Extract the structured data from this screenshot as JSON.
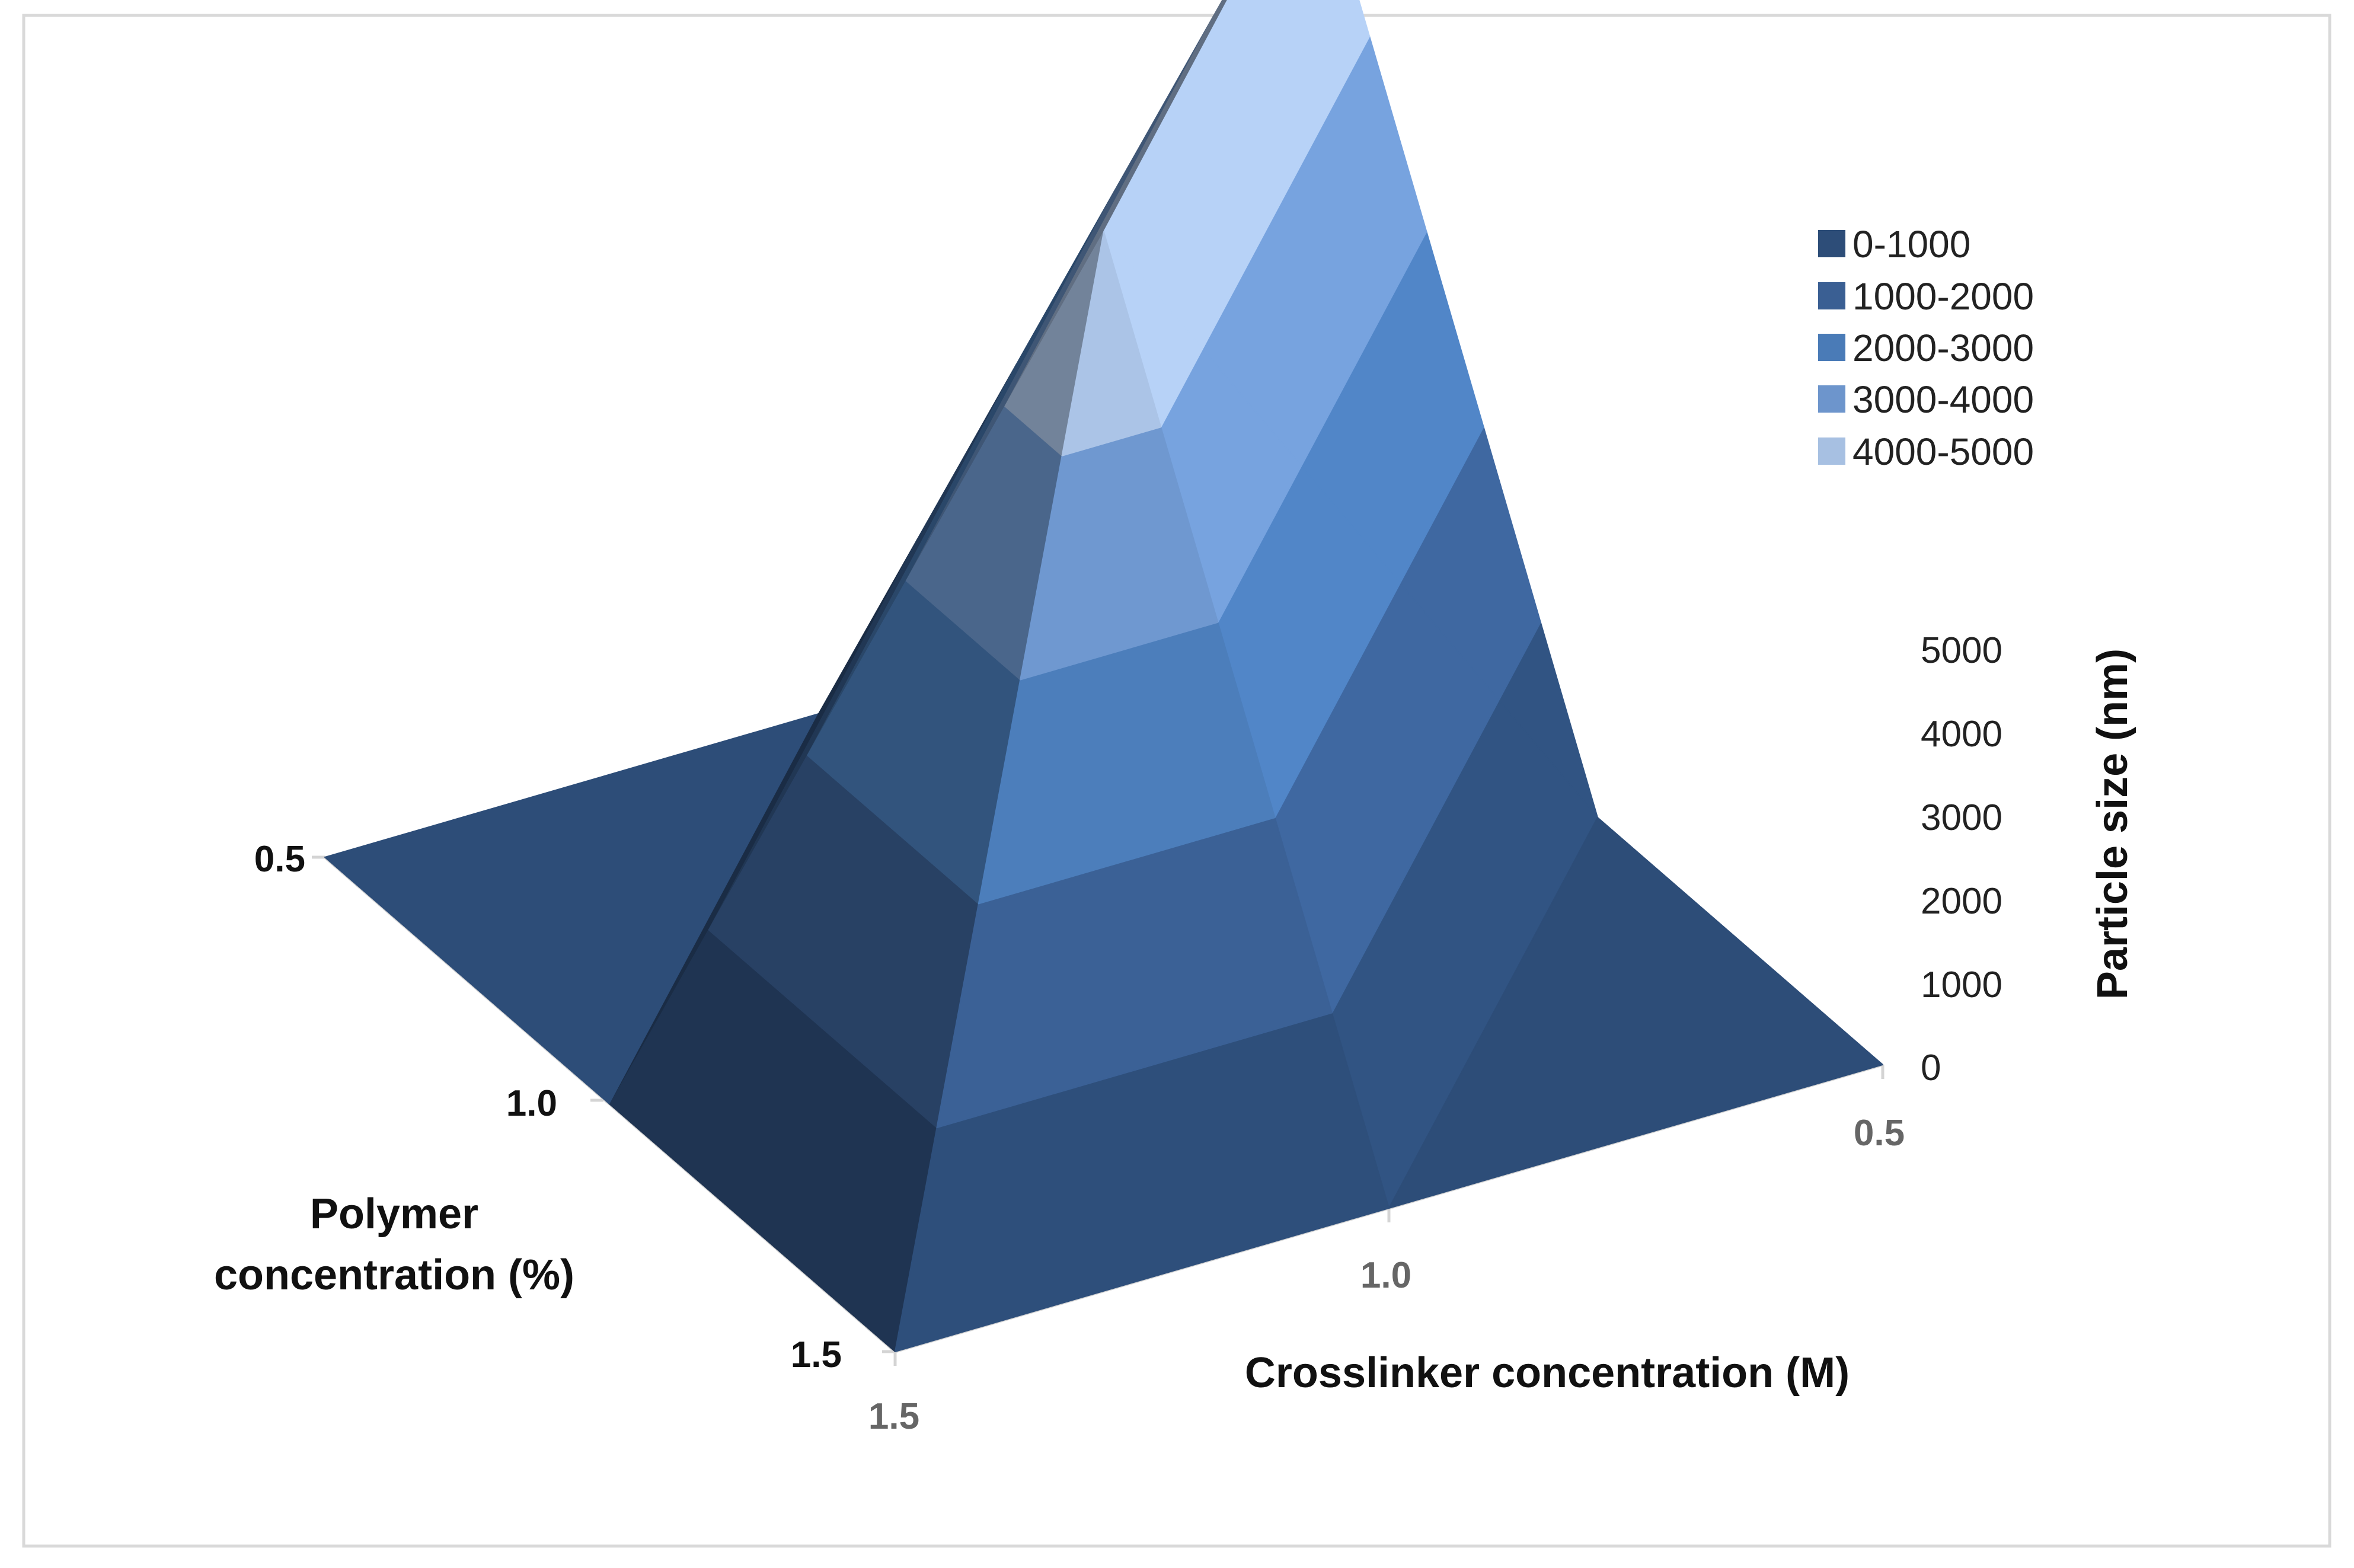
{
  "chart_data": {
    "type": "surface",
    "title": "",
    "x_axis": {
      "label": "Crosslinker concentration (M)",
      "ticks": [
        "1.5",
        "1.0",
        "0.5"
      ],
      "values": [
        1.5,
        1.0,
        0.5
      ]
    },
    "y_axis": {
      "label_lines": [
        "Polymer",
        "concentration (%)"
      ],
      "ticks": [
        "0.5",
        "1.0",
        "1.5"
      ],
      "values": [
        0.5,
        1.0,
        1.5
      ]
    },
    "z_axis": {
      "label": "Particle size (nm)",
      "ticks": [
        "0",
        "1000",
        "2000",
        "3000",
        "4000",
        "5000"
      ],
      "zlim": [
        0,
        5000
      ]
    },
    "surface": {
      "crosslinker": [
        1.5,
        1.0,
        0.5
      ],
      "polymer": [
        0.5,
        1.0,
        1.5
      ],
      "particle_size_nm": [
        [
          0,
          0,
          5000
        ],
        [
          0,
          5000,
          0
        ],
        [
          0,
          0,
          0
        ]
      ]
    },
    "legend": {
      "position": "top-right",
      "items": [
        {
          "label": "0-1000",
          "color": "#2d4d78"
        },
        {
          "label": "1000-2000",
          "color": "#3a5f93"
        },
        {
          "label": "2000-3000",
          "color": "#4a7bb7"
        },
        {
          "label": "3000-4000",
          "color": "#6d95cc"
        },
        {
          "label": "4000-5000",
          "color": "#a7c0e2"
        }
      ]
    }
  }
}
